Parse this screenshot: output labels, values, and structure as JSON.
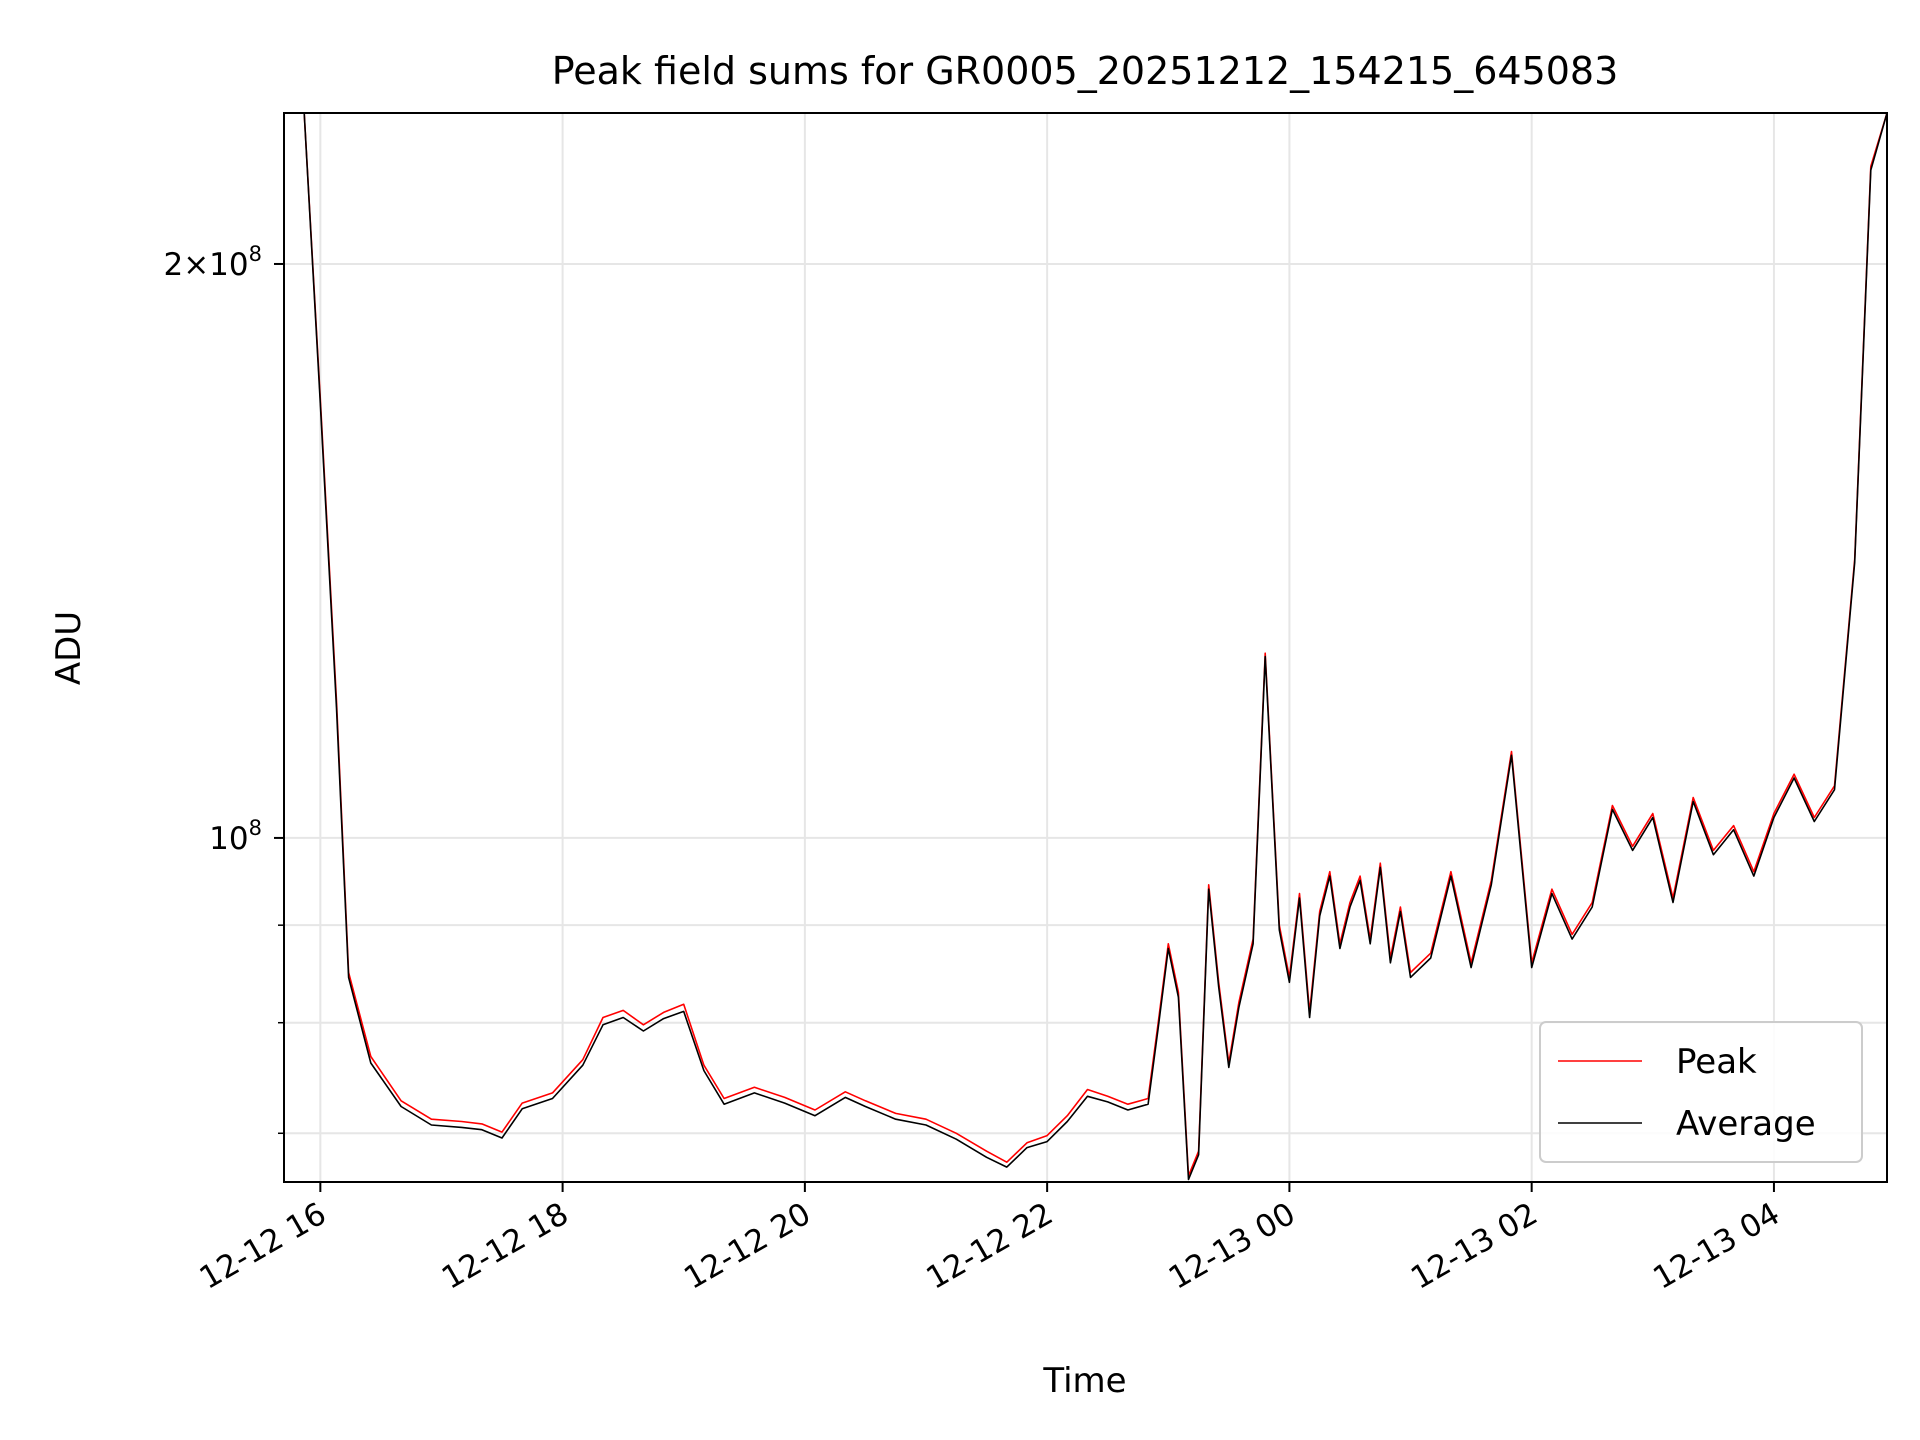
{
  "chart_data": {
    "type": "line",
    "title": "Peak field sums for GR0005_20251212_154215_645083",
    "xlabel": "Time",
    "ylabel": "ADU",
    "yscale": "log",
    "grid": true,
    "legend_position": "lower-right",
    "xlim": [
      "2025-12-12 15:42",
      "2025-12-13 04:56"
    ],
    "ylim": [
      66000000,
      240000000
    ],
    "x_ticks": [
      {
        "t": "2025-12-12 16:00",
        "label": "12-12 16"
      },
      {
        "t": "2025-12-12 18:00",
        "label": "12-12 18"
      },
      {
        "t": "2025-12-12 20:00",
        "label": "12-12 20"
      },
      {
        "t": "2025-12-12 22:00",
        "label": "12-12 22"
      },
      {
        "t": "2025-12-13 00:00",
        "label": "12-13 00"
      },
      {
        "t": "2025-12-13 02:00",
        "label": "12-13 02"
      },
      {
        "t": "2025-12-13 04:00",
        "label": "12-13 04"
      }
    ],
    "y_major_ticks": [
      {
        "value": 100000000,
        "base": "10",
        "exp": "8",
        "mantissa": ""
      },
      {
        "value": 200000000,
        "base": "10",
        "exp": "8",
        "mantissa": "2×"
      }
    ],
    "y_minor_ticks": [
      70000000,
      80000000,
      90000000
    ],
    "series": [
      {
        "name": "Peak",
        "color": "#ff0000",
        "points": [
          [
            "2025-12-12 15:42",
            240000000
          ],
          [
            "2025-12-12 15:52",
            240000000
          ],
          [
            "2025-12-12 16:00",
            170000000
          ],
          [
            "2025-12-12 16:08",
            118000000
          ],
          [
            "2025-12-12 16:14",
            85000000
          ],
          [
            "2025-12-12 16:25",
            76800000
          ],
          [
            "2025-12-12 16:40",
            72800000
          ],
          [
            "2025-12-12 16:55",
            71200000
          ],
          [
            "2025-12-12 17:10",
            71000000
          ],
          [
            "2025-12-12 17:20",
            70800000
          ],
          [
            "2025-12-12 17:30",
            70100000
          ],
          [
            "2025-12-12 17:40",
            72600000
          ],
          [
            "2025-12-12 17:55",
            73500000
          ],
          [
            "2025-12-12 18:10",
            76500000
          ],
          [
            "2025-12-12 18:20",
            80500000
          ],
          [
            "2025-12-12 18:30",
            81200000
          ],
          [
            "2025-12-12 18:40",
            79800000
          ],
          [
            "2025-12-12 18:50",
            81000000
          ],
          [
            "2025-12-12 19:00",
            81800000
          ],
          [
            "2025-12-12 19:10",
            76000000
          ],
          [
            "2025-12-12 19:20",
            73000000
          ],
          [
            "2025-12-12 19:35",
            74000000
          ],
          [
            "2025-12-12 19:50",
            73100000
          ],
          [
            "2025-12-12 20:05",
            72000000
          ],
          [
            "2025-12-12 20:20",
            73600000
          ],
          [
            "2025-12-12 20:30",
            72800000
          ],
          [
            "2025-12-12 20:45",
            71700000
          ],
          [
            "2025-12-12 21:00",
            71200000
          ],
          [
            "2025-12-12 21:15",
            70000000
          ],
          [
            "2025-12-12 21:30",
            68500000
          ],
          [
            "2025-12-12 21:40",
            67600000
          ],
          [
            "2025-12-12 21:50",
            69200000
          ],
          [
            "2025-12-12 22:00",
            69800000
          ],
          [
            "2025-12-12 22:10",
            71500000
          ],
          [
            "2025-12-12 22:20",
            73800000
          ],
          [
            "2025-12-12 22:30",
            73200000
          ],
          [
            "2025-12-12 22:40",
            72500000
          ],
          [
            "2025-12-12 22:50",
            73000000
          ],
          [
            "2025-12-12 22:55",
            80000000
          ],
          [
            "2025-12-12 23:00",
            88000000
          ],
          [
            "2025-12-12 23:05",
            83000000
          ],
          [
            "2025-12-12 23:10",
            66500000
          ],
          [
            "2025-12-12 23:15",
            68500000
          ],
          [
            "2025-12-12 23:20",
            94500000
          ],
          [
            "2025-12-12 23:25",
            84000000
          ],
          [
            "2025-12-12 23:30",
            76200000
          ],
          [
            "2025-12-12 23:35",
            82000000
          ],
          [
            "2025-12-12 23:42",
            88500000
          ],
          [
            "2025-12-12 23:48",
            125000000
          ],
          [
            "2025-12-12 23:55",
            90000000
          ],
          [
            "2025-12-13 00:00",
            84500000
          ],
          [
            "2025-12-13 00:05",
            93500000
          ],
          [
            "2025-12-13 00:10",
            81000000
          ],
          [
            "2025-12-13 00:15",
            91500000
          ],
          [
            "2025-12-13 00:20",
            96000000
          ],
          [
            "2025-12-13 00:25",
            88000000
          ],
          [
            "2025-12-13 00:30",
            92500000
          ],
          [
            "2025-12-13 00:35",
            95500000
          ],
          [
            "2025-12-13 00:40",
            88500000
          ],
          [
            "2025-12-13 00:45",
            97000000
          ],
          [
            "2025-12-13 00:50",
            86500000
          ],
          [
            "2025-12-13 00:55",
            92000000
          ],
          [
            "2025-12-13 01:00",
            85000000
          ],
          [
            "2025-12-13 01:10",
            87000000
          ],
          [
            "2025-12-13 01:20",
            96000000
          ],
          [
            "2025-12-13 01:30",
            86000000
          ],
          [
            "2025-12-13 01:40",
            95000000
          ],
          [
            "2025-12-13 01:50",
            111000000
          ],
          [
            "2025-12-13 02:00",
            86000000
          ],
          [
            "2025-12-13 02:10",
            94000000
          ],
          [
            "2025-12-13 02:20",
            89000000
          ],
          [
            "2025-12-13 02:30",
            92500000
          ],
          [
            "2025-12-13 02:40",
            104000000
          ],
          [
            "2025-12-13 02:50",
            99000000
          ],
          [
            "2025-12-13 03:00",
            103000000
          ],
          [
            "2025-12-13 03:10",
            93000000
          ],
          [
            "2025-12-13 03:20",
            105000000
          ],
          [
            "2025-12-13 03:30",
            98500000
          ],
          [
            "2025-12-13 03:40",
            101500000
          ],
          [
            "2025-12-13 03:50",
            96000000
          ],
          [
            "2025-12-13 04:00",
            103000000
          ],
          [
            "2025-12-13 04:10",
            108000000
          ],
          [
            "2025-12-13 04:20",
            102500000
          ],
          [
            "2025-12-13 04:30",
            106500000
          ],
          [
            "2025-12-13 04:40",
            140000000
          ],
          [
            "2025-12-13 04:48",
            225000000
          ],
          [
            "2025-12-13 04:56",
            240000000
          ]
        ]
      },
      {
        "name": "Average",
        "color": "#000000",
        "points": [
          [
            "2025-12-12 15:42",
            240000000
          ],
          [
            "2025-12-12 15:52",
            240000000
          ],
          [
            "2025-12-12 16:00",
            169000000
          ],
          [
            "2025-12-12 16:08",
            117000000
          ],
          [
            "2025-12-12 16:14",
            84500000
          ],
          [
            "2025-12-12 16:25",
            76200000
          ],
          [
            "2025-12-12 16:40",
            72300000
          ],
          [
            "2025-12-12 16:55",
            70700000
          ],
          [
            "2025-12-12 17:10",
            70500000
          ],
          [
            "2025-12-12 17:20",
            70300000
          ],
          [
            "2025-12-12 17:30",
            69600000
          ],
          [
            "2025-12-12 17:40",
            72100000
          ],
          [
            "2025-12-12 17:55",
            73000000
          ],
          [
            "2025-12-12 18:10",
            76000000
          ],
          [
            "2025-12-12 18:20",
            79800000
          ],
          [
            "2025-12-12 18:30",
            80500000
          ],
          [
            "2025-12-12 18:40",
            79200000
          ],
          [
            "2025-12-12 18:50",
            80400000
          ],
          [
            "2025-12-12 19:00",
            81100000
          ],
          [
            "2025-12-12 19:10",
            75500000
          ],
          [
            "2025-12-12 19:20",
            72500000
          ],
          [
            "2025-12-12 19:35",
            73500000
          ],
          [
            "2025-12-12 19:50",
            72600000
          ],
          [
            "2025-12-12 20:05",
            71500000
          ],
          [
            "2025-12-12 20:20",
            73100000
          ],
          [
            "2025-12-12 20:30",
            72300000
          ],
          [
            "2025-12-12 20:45",
            71200000
          ],
          [
            "2025-12-12 21:00",
            70700000
          ],
          [
            "2025-12-12 21:15",
            69500000
          ],
          [
            "2025-12-12 21:30",
            68000000
          ],
          [
            "2025-12-12 21:40",
            67200000
          ],
          [
            "2025-12-12 21:50",
            68800000
          ],
          [
            "2025-12-12 22:00",
            69300000
          ],
          [
            "2025-12-12 22:10",
            71000000
          ],
          [
            "2025-12-12 22:20",
            73200000
          ],
          [
            "2025-12-12 22:30",
            72700000
          ],
          [
            "2025-12-12 22:40",
            72000000
          ],
          [
            "2025-12-12 22:50",
            72500000
          ],
          [
            "2025-12-12 22:55",
            79500000
          ],
          [
            "2025-12-12 23:00",
            87500000
          ],
          [
            "2025-12-12 23:05",
            82500000
          ],
          [
            "2025-12-12 23:10",
            66200000
          ],
          [
            "2025-12-12 23:15",
            68200000
          ],
          [
            "2025-12-12 23:20",
            94000000
          ],
          [
            "2025-12-12 23:25",
            83500000
          ],
          [
            "2025-12-12 23:30",
            75800000
          ],
          [
            "2025-12-12 23:35",
            81500000
          ],
          [
            "2025-12-12 23:42",
            88000000
          ],
          [
            "2025-12-12 23:48",
            124500000
          ],
          [
            "2025-12-12 23:55",
            89500000
          ],
          [
            "2025-12-13 00:00",
            84000000
          ],
          [
            "2025-12-13 00:05",
            93000000
          ],
          [
            "2025-12-13 00:10",
            80500000
          ],
          [
            "2025-12-13 00:15",
            91000000
          ],
          [
            "2025-12-13 00:20",
            95500000
          ],
          [
            "2025-12-13 00:25",
            87500000
          ],
          [
            "2025-12-13 00:30",
            92000000
          ],
          [
            "2025-12-13 00:35",
            95000000
          ],
          [
            "2025-12-13 00:40",
            88000000
          ],
          [
            "2025-12-13 00:45",
            96500000
          ],
          [
            "2025-12-13 00:50",
            86000000
          ],
          [
            "2025-12-13 00:55",
            91500000
          ],
          [
            "2025-12-13 01:00",
            84500000
          ],
          [
            "2025-12-13 01:10",
            86500000
          ],
          [
            "2025-12-13 01:20",
            95500000
          ],
          [
            "2025-12-13 01:30",
            85500000
          ],
          [
            "2025-12-13 01:40",
            94500000
          ],
          [
            "2025-12-13 01:50",
            110500000
          ],
          [
            "2025-12-13 02:00",
            85500000
          ],
          [
            "2025-12-13 02:10",
            93500000
          ],
          [
            "2025-12-13 02:20",
            88500000
          ],
          [
            "2025-12-13 02:30",
            92000000
          ],
          [
            "2025-12-13 02:40",
            103500000
          ],
          [
            "2025-12-13 02:50",
            98500000
          ],
          [
            "2025-12-13 03:00",
            102500000
          ],
          [
            "2025-12-13 03:10",
            92500000
          ],
          [
            "2025-12-13 03:20",
            104500000
          ],
          [
            "2025-12-13 03:30",
            98000000
          ],
          [
            "2025-12-13 03:40",
            101000000
          ],
          [
            "2025-12-13 03:50",
            95500000
          ],
          [
            "2025-12-13 04:00",
            102500000
          ],
          [
            "2025-12-13 04:10",
            107500000
          ],
          [
            "2025-12-13 04:20",
            102000000
          ],
          [
            "2025-12-13 04:30",
            106000000
          ],
          [
            "2025-12-13 04:40",
            139500000
          ],
          [
            "2025-12-13 04:48",
            224000000
          ],
          [
            "2025-12-13 04:56",
            240000000
          ]
        ]
      }
    ]
  }
}
